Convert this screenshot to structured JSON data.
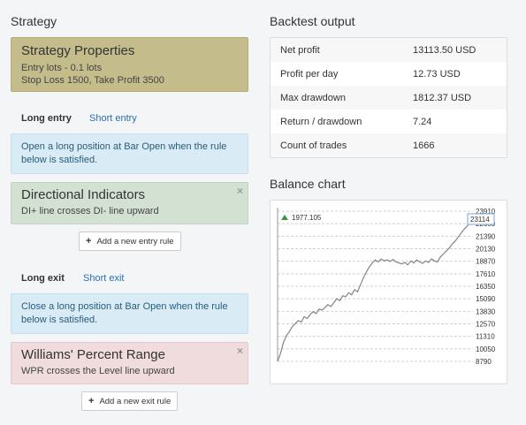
{
  "strategy": {
    "heading": "Strategy",
    "properties": {
      "title": "Strategy Properties",
      "lines": [
        "Entry lots - 0.1 lots",
        "Stop Loss 1500, Take Profit 3500"
      ]
    },
    "entry_tabs": {
      "active": "Long entry",
      "other": "Short entry"
    },
    "entry_note": "Open a long position at Bar Open when the rule below is satisfied.",
    "entry_rule": {
      "title": "Directional Indicators",
      "desc": "DI+ line crosses DI- line upward",
      "close_icon": "×"
    },
    "add_entry_label": "Add a new entry rule",
    "exit_tabs": {
      "active": "Long exit",
      "other": "Short exit"
    },
    "exit_note": "Close a long position at Bar Open when the rule below is satisfied.",
    "exit_rule": {
      "title": "Williams' Percent Range",
      "desc": "WPR crosses the Level line upward",
      "close_icon": "×"
    },
    "add_exit_label": "Add a new exit rule",
    "plus_icon": "+"
  },
  "backtest": {
    "heading": "Backtest output",
    "rows": [
      {
        "label": "Net profit",
        "value": "13113.50 USD"
      },
      {
        "label": "Profit per day",
        "value": "12.73 USD"
      },
      {
        "label": "Max drawdown",
        "value": "1812.37 USD"
      },
      {
        "label": "Return / drawdown",
        "value": "7.24"
      },
      {
        "label": "Count of trades",
        "value": "1666"
      }
    ]
  },
  "balance": {
    "heading": "Balance chart"
  },
  "chart_data": {
    "type": "line",
    "title": "",
    "y_ticks": [
      23910,
      22650,
      21390,
      20130,
      18870,
      17610,
      16350,
      15090,
      13830,
      12570,
      11310,
      10050,
      8790
    ],
    "ylim": [
      8790,
      23910
    ],
    "start_marker": "1977.105",
    "end_value": 23114,
    "end_label": "23114",
    "series": [
      {
        "values": [
          8790,
          9600,
          10700,
          11400,
          11800,
          12300,
          12600,
          12900,
          12750,
          13300,
          13100,
          13500,
          13800,
          13600,
          14050,
          13950,
          14200,
          14500,
          14300,
          14700,
          15100,
          14900,
          15400,
          15300,
          15700,
          15500,
          16000,
          15800,
          16500,
          17200,
          17800,
          18300,
          18700,
          19000,
          18800,
          19100,
          18900,
          19000,
          18850,
          19050,
          18800,
          18700,
          18600,
          18750,
          18500,
          18900,
          18700,
          19000,
          18800,
          18650,
          18900,
          18750,
          19100,
          18900,
          18800,
          19300,
          19600,
          19900,
          20200,
          20600,
          20900,
          21300,
          21700,
          22100,
          22400,
          22800,
          23114
        ]
      }
    ],
    "line_color": "#8a7f8a",
    "marker_color": "#3a9a3a"
  }
}
